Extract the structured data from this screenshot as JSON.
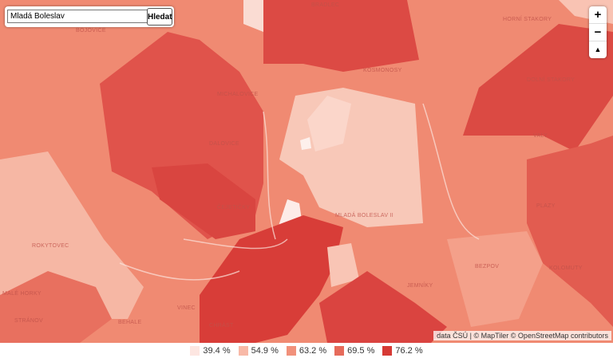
{
  "search": {
    "value": "Mladá Boleslav",
    "button": "Hledat"
  },
  "zoom": {
    "in": "+",
    "out": "−",
    "reset": "▲"
  },
  "attribution": "data ČSÚ | © MapTiler © OpenStreetMap contributors",
  "places": [
    "BRADLEC",
    "HORNÍ STAKORY",
    "DOLNÍ STAKORY",
    "KOSMONOSY",
    "MICHALOVICE",
    "DALOVICE",
    "ČEJETIČKY",
    "ROKYTOVEC",
    "MLADÁ BOLESLAV II",
    "JEMNÍKY",
    "BEZPOV",
    "KOLOMUTY",
    "PLAZY",
    "VALY",
    "MALÉ HORKY",
    "STRÁNOV",
    "BEHALE",
    "VINEC",
    "CHRÁST",
    "BOJOVICE"
  ],
  "legend": [
    {
      "label": "39.4 %",
      "color": "#fde6e1"
    },
    {
      "label": "54.9 %",
      "color": "#f8b9a7"
    },
    {
      "label": "63.2 %",
      "color": "#f1917b"
    },
    {
      "label": "69.5 %",
      "color": "#e66b5b"
    },
    {
      "label": "76.2 %",
      "color": "#d63a35"
    }
  ]
}
